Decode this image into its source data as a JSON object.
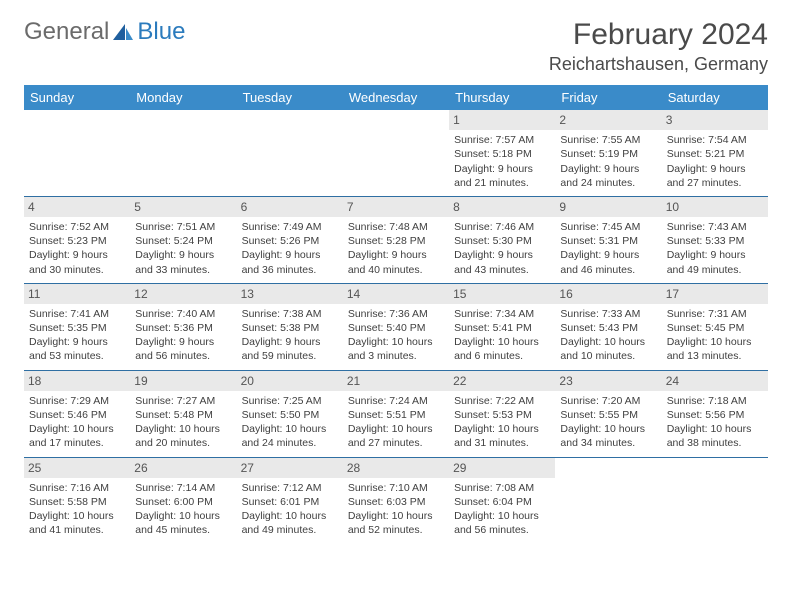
{
  "logo": {
    "text1": "General",
    "text2": "Blue"
  },
  "title": "February 2024",
  "location": "Reichartshausen, Germany",
  "colors": {
    "header_bg": "#3a8bc9",
    "header_text": "#ffffff",
    "daynum_bg": "#e9e9e9",
    "daynum_text": "#555555",
    "row_border": "#2f6fa3",
    "body_text": "#3f3f3f",
    "logo_gray": "#6b6b6b",
    "logo_blue": "#2b7bbd",
    "title_color": "#4a4a4a"
  },
  "weekdays": [
    "Sunday",
    "Monday",
    "Tuesday",
    "Wednesday",
    "Thursday",
    "Friday",
    "Saturday"
  ],
  "weeks": [
    [
      {
        "day": "",
        "sunrise": "",
        "sunset": "",
        "daylight1": "",
        "daylight2": ""
      },
      {
        "day": "",
        "sunrise": "",
        "sunset": "",
        "daylight1": "",
        "daylight2": ""
      },
      {
        "day": "",
        "sunrise": "",
        "sunset": "",
        "daylight1": "",
        "daylight2": ""
      },
      {
        "day": "",
        "sunrise": "",
        "sunset": "",
        "daylight1": "",
        "daylight2": ""
      },
      {
        "day": "1",
        "sunrise": "Sunrise: 7:57 AM",
        "sunset": "Sunset: 5:18 PM",
        "daylight1": "Daylight: 9 hours",
        "daylight2": "and 21 minutes."
      },
      {
        "day": "2",
        "sunrise": "Sunrise: 7:55 AM",
        "sunset": "Sunset: 5:19 PM",
        "daylight1": "Daylight: 9 hours",
        "daylight2": "and 24 minutes."
      },
      {
        "day": "3",
        "sunrise": "Sunrise: 7:54 AM",
        "sunset": "Sunset: 5:21 PM",
        "daylight1": "Daylight: 9 hours",
        "daylight2": "and 27 minutes."
      }
    ],
    [
      {
        "day": "4",
        "sunrise": "Sunrise: 7:52 AM",
        "sunset": "Sunset: 5:23 PM",
        "daylight1": "Daylight: 9 hours",
        "daylight2": "and 30 minutes."
      },
      {
        "day": "5",
        "sunrise": "Sunrise: 7:51 AM",
        "sunset": "Sunset: 5:24 PM",
        "daylight1": "Daylight: 9 hours",
        "daylight2": "and 33 minutes."
      },
      {
        "day": "6",
        "sunrise": "Sunrise: 7:49 AM",
        "sunset": "Sunset: 5:26 PM",
        "daylight1": "Daylight: 9 hours",
        "daylight2": "and 36 minutes."
      },
      {
        "day": "7",
        "sunrise": "Sunrise: 7:48 AM",
        "sunset": "Sunset: 5:28 PM",
        "daylight1": "Daylight: 9 hours",
        "daylight2": "and 40 minutes."
      },
      {
        "day": "8",
        "sunrise": "Sunrise: 7:46 AM",
        "sunset": "Sunset: 5:30 PM",
        "daylight1": "Daylight: 9 hours",
        "daylight2": "and 43 minutes."
      },
      {
        "day": "9",
        "sunrise": "Sunrise: 7:45 AM",
        "sunset": "Sunset: 5:31 PM",
        "daylight1": "Daylight: 9 hours",
        "daylight2": "and 46 minutes."
      },
      {
        "day": "10",
        "sunrise": "Sunrise: 7:43 AM",
        "sunset": "Sunset: 5:33 PM",
        "daylight1": "Daylight: 9 hours",
        "daylight2": "and 49 minutes."
      }
    ],
    [
      {
        "day": "11",
        "sunrise": "Sunrise: 7:41 AM",
        "sunset": "Sunset: 5:35 PM",
        "daylight1": "Daylight: 9 hours",
        "daylight2": "and 53 minutes."
      },
      {
        "day": "12",
        "sunrise": "Sunrise: 7:40 AM",
        "sunset": "Sunset: 5:36 PM",
        "daylight1": "Daylight: 9 hours",
        "daylight2": "and 56 minutes."
      },
      {
        "day": "13",
        "sunrise": "Sunrise: 7:38 AM",
        "sunset": "Sunset: 5:38 PM",
        "daylight1": "Daylight: 9 hours",
        "daylight2": "and 59 minutes."
      },
      {
        "day": "14",
        "sunrise": "Sunrise: 7:36 AM",
        "sunset": "Sunset: 5:40 PM",
        "daylight1": "Daylight: 10 hours",
        "daylight2": "and 3 minutes."
      },
      {
        "day": "15",
        "sunrise": "Sunrise: 7:34 AM",
        "sunset": "Sunset: 5:41 PM",
        "daylight1": "Daylight: 10 hours",
        "daylight2": "and 6 minutes."
      },
      {
        "day": "16",
        "sunrise": "Sunrise: 7:33 AM",
        "sunset": "Sunset: 5:43 PM",
        "daylight1": "Daylight: 10 hours",
        "daylight2": "and 10 minutes."
      },
      {
        "day": "17",
        "sunrise": "Sunrise: 7:31 AM",
        "sunset": "Sunset: 5:45 PM",
        "daylight1": "Daylight: 10 hours",
        "daylight2": "and 13 minutes."
      }
    ],
    [
      {
        "day": "18",
        "sunrise": "Sunrise: 7:29 AM",
        "sunset": "Sunset: 5:46 PM",
        "daylight1": "Daylight: 10 hours",
        "daylight2": "and 17 minutes."
      },
      {
        "day": "19",
        "sunrise": "Sunrise: 7:27 AM",
        "sunset": "Sunset: 5:48 PM",
        "daylight1": "Daylight: 10 hours",
        "daylight2": "and 20 minutes."
      },
      {
        "day": "20",
        "sunrise": "Sunrise: 7:25 AM",
        "sunset": "Sunset: 5:50 PM",
        "daylight1": "Daylight: 10 hours",
        "daylight2": "and 24 minutes."
      },
      {
        "day": "21",
        "sunrise": "Sunrise: 7:24 AM",
        "sunset": "Sunset: 5:51 PM",
        "daylight1": "Daylight: 10 hours",
        "daylight2": "and 27 minutes."
      },
      {
        "day": "22",
        "sunrise": "Sunrise: 7:22 AM",
        "sunset": "Sunset: 5:53 PM",
        "daylight1": "Daylight: 10 hours",
        "daylight2": "and 31 minutes."
      },
      {
        "day": "23",
        "sunrise": "Sunrise: 7:20 AM",
        "sunset": "Sunset: 5:55 PM",
        "daylight1": "Daylight: 10 hours",
        "daylight2": "and 34 minutes."
      },
      {
        "day": "24",
        "sunrise": "Sunrise: 7:18 AM",
        "sunset": "Sunset: 5:56 PM",
        "daylight1": "Daylight: 10 hours",
        "daylight2": "and 38 minutes."
      }
    ],
    [
      {
        "day": "25",
        "sunrise": "Sunrise: 7:16 AM",
        "sunset": "Sunset: 5:58 PM",
        "daylight1": "Daylight: 10 hours",
        "daylight2": "and 41 minutes."
      },
      {
        "day": "26",
        "sunrise": "Sunrise: 7:14 AM",
        "sunset": "Sunset: 6:00 PM",
        "daylight1": "Daylight: 10 hours",
        "daylight2": "and 45 minutes."
      },
      {
        "day": "27",
        "sunrise": "Sunrise: 7:12 AM",
        "sunset": "Sunset: 6:01 PM",
        "daylight1": "Daylight: 10 hours",
        "daylight2": "and 49 minutes."
      },
      {
        "day": "28",
        "sunrise": "Sunrise: 7:10 AM",
        "sunset": "Sunset: 6:03 PM",
        "daylight1": "Daylight: 10 hours",
        "daylight2": "and 52 minutes."
      },
      {
        "day": "29",
        "sunrise": "Sunrise: 7:08 AM",
        "sunset": "Sunset: 6:04 PM",
        "daylight1": "Daylight: 10 hours",
        "daylight2": "and 56 minutes."
      },
      {
        "day": "",
        "sunrise": "",
        "sunset": "",
        "daylight1": "",
        "daylight2": ""
      },
      {
        "day": "",
        "sunrise": "",
        "sunset": "",
        "daylight1": "",
        "daylight2": ""
      }
    ]
  ]
}
